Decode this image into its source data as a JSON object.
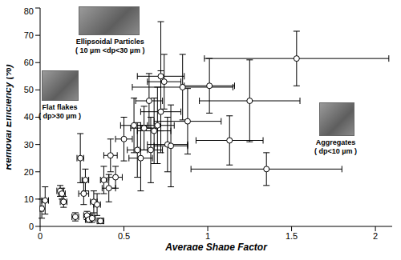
{
  "chart_data": {
    "type": "scatter",
    "x_label": "Average  Shape Factor",
    "y_label": "Removal Efficiency (%)",
    "xlim": [
      0,
      2.1
    ],
    "xticks": [
      0,
      0.5,
      1,
      1.5,
      2
    ],
    "ylim": [
      0,
      80
    ],
    "yticks": [
      0,
      10,
      20,
      30,
      40,
      50,
      60,
      70,
      80
    ],
    "grid": false,
    "marker": "circle",
    "color": "#000000",
    "annotations": [
      "Ellipsoidal Particles",
      "( 10 µm <dp<30 µm )",
      "Flat flakes",
      "( dp>30 µm )",
      "Aggregates",
      "( dp<10 µm )"
    ],
    "x": [
      0.01,
      0.03,
      0.12,
      0.13,
      0.14,
      0.21,
      0.24,
      0.26,
      0.27,
      0.28,
      0.29,
      0.31,
      0.32,
      0.34,
      0.36,
      0.38,
      0.41,
      0.42,
      0.45,
      0.5,
      0.56,
      0.58,
      0.6,
      0.62,
      0.65,
      0.66,
      0.68,
      0.7,
      0.72,
      0.72,
      0.74,
      0.76,
      0.78,
      0.85,
      0.88,
      1.01,
      1.13,
      1.25,
      1.35,
      1.53
    ],
    "y": [
      6.5,
      9.5,
      13,
      12,
      9,
      3.5,
      25,
      12,
      17,
      4,
      2.5,
      3,
      9,
      8,
      2,
      17,
      14,
      26,
      18,
      32,
      37,
      28,
      25,
      36,
      46,
      28,
      35,
      37,
      42,
      55,
      53,
      30,
      29.5,
      51,
      38.5,
      51.5,
      31.5,
      46,
      21,
      61.5
    ],
    "x_error": [
      0.01,
      0.02,
      0.02,
      0.02,
      0.02,
      0.02,
      0.02,
      0.03,
      0.02,
      0.02,
      0.02,
      0.02,
      0.02,
      0.02,
      0.02,
      0.02,
      0.04,
      0.04,
      0.04,
      0.05,
      0.08,
      0.06,
      0.07,
      0.08,
      0.08,
      0.07,
      0.1,
      0.1,
      0.12,
      0.14,
      0.1,
      0.12,
      0.1,
      0.3,
      0.2,
      0.15,
      0.2,
      0.3,
      0.45,
      0.55
    ],
    "y_error": [
      3.5,
      5,
      2,
      2,
      2,
      1.5,
      9,
      4,
      4,
      1.5,
      1,
      1.5,
      4,
      4,
      1,
      5,
      5,
      6,
      4,
      8,
      10,
      10,
      12,
      8,
      10,
      12,
      12,
      14,
      15,
      20,
      10,
      10,
      15,
      12,
      12,
      10,
      9,
      15,
      6,
      10
    ]
  }
}
